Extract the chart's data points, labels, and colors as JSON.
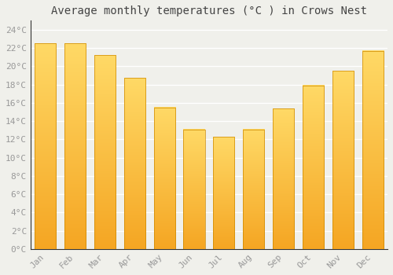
{
  "title": "Average monthly temperatures (°C ) in Crows Nest",
  "months": [
    "Jan",
    "Feb",
    "Mar",
    "Apr",
    "May",
    "Jun",
    "Jul",
    "Aug",
    "Sep",
    "Oct",
    "Nov",
    "Dec"
  ],
  "values": [
    22.5,
    22.5,
    21.2,
    18.7,
    15.5,
    13.1,
    12.3,
    13.1,
    15.4,
    17.9,
    19.5,
    21.7
  ],
  "bar_color_bottom": "#F5A623",
  "bar_color_top": "#FFD966",
  "ylim_max": 25,
  "background_color": "#f0f0eb",
  "grid_color": "#ffffff",
  "title_fontsize": 10,
  "tick_fontsize": 8,
  "tick_color": "#999999",
  "title_color": "#444444"
}
